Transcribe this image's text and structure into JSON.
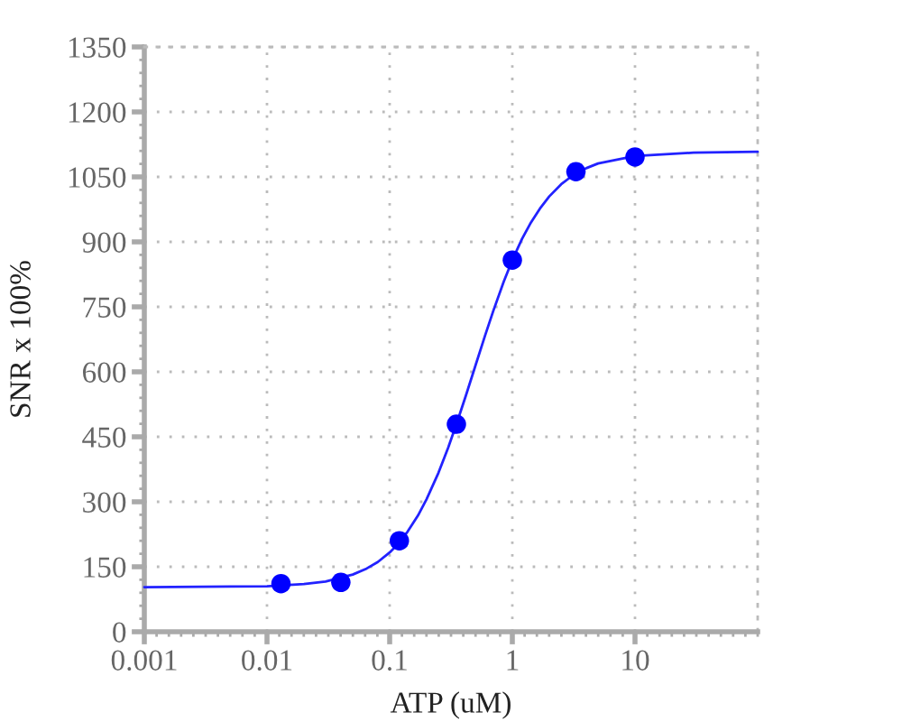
{
  "chart_data": {
    "type": "scatter",
    "xlabel": "ATP (uM)",
    "ylabel": "SNR x 100%",
    "log": "x",
    "xlim": [
      0.001,
      100
    ],
    "xticks": [
      0.001,
      0.01,
      0.1,
      1,
      10
    ],
    "ylim": [
      0,
      1350
    ],
    "yticks": [
      0,
      150,
      300,
      450,
      600,
      750,
      900,
      1050,
      1200,
      1350
    ],
    "grid": true,
    "marker": "circle",
    "series": [
      {
        "type": "line",
        "color": "#2222ff",
        "marker": "none",
        "x": [
          0.001,
          0.01,
          0.02,
          0.03,
          0.05,
          0.065,
          0.08,
          0.1,
          0.12,
          0.14,
          0.17,
          0.2,
          0.25,
          0.3,
          0.35,
          0.42,
          0.5,
          0.6,
          0.7,
          0.85,
          1,
          1.2,
          1.4,
          1.7,
          2,
          2.5,
          3,
          4,
          5,
          10,
          30,
          100
        ],
        "values": [
          103,
          105,
          110,
          116,
          132,
          146,
          161,
          183,
          206,
          231,
          268,
          306,
          367,
          425,
          479,
          547,
          614,
          684,
          741,
          808,
          858,
          907,
          942,
          979,
          1005,
          1033,
          1050,
          1070,
          1081,
          1098,
          1106,
          1108
        ]
      },
      {
        "color": "#0000ff",
        "x": [
          0.013,
          0.04,
          0.12,
          0.35,
          1,
          3.3,
          10
        ],
        "values": [
          111,
          114,
          210,
          479,
          858,
          1062,
          1096
        ]
      }
    ]
  }
}
